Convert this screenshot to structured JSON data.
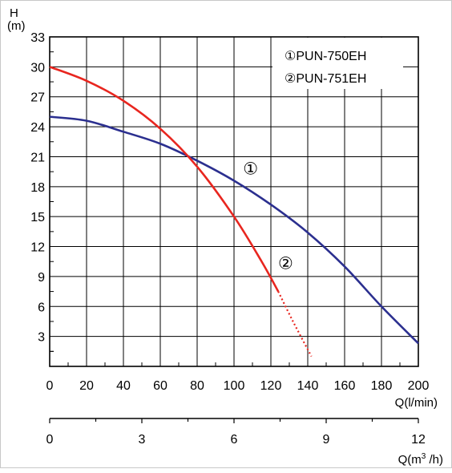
{
  "chart_data": {
    "type": "line",
    "y_axis": {
      "label_top": "H",
      "label_unit": "(m)",
      "ticks": [
        "3",
        "6",
        "9",
        "12",
        "15",
        "18",
        "21",
        "24",
        "27",
        "30",
        "33"
      ],
      "range": [
        0,
        33
      ]
    },
    "x_axis": {
      "label": "Q(l/min)",
      "ticks": [
        "0",
        "20",
        "40",
        "60",
        "80",
        "100",
        "120",
        "140",
        "160",
        "180",
        "200"
      ],
      "range": [
        0,
        200
      ]
    },
    "x2_axis": {
      "label_prefix": "Q(m",
      "label_sup": "3",
      "label_suffix": " /h)",
      "ticks": [
        "0",
        "3",
        "6",
        "9",
        "12"
      ],
      "range": [
        0,
        12
      ]
    },
    "legend": {
      "placement": "top-right",
      "items": [
        "①PUN-750EH",
        "②PUN-751EH"
      ]
    },
    "series": [
      {
        "name": "①",
        "color": "#2b2f8f",
        "x": [
          0,
          20,
          40,
          60,
          80,
          100,
          120,
          140,
          160,
          180,
          200
        ],
        "y": [
          25,
          24.6,
          23.5,
          22.3,
          20.6,
          18.6,
          16.2,
          13.4,
          10,
          6,
          2.3
        ]
      },
      {
        "name": "②",
        "color": "#e8261f",
        "x": [
          0,
          20,
          40,
          60,
          80,
          100,
          115,
          124
        ],
        "y": [
          30,
          28.6,
          26.6,
          23.8,
          20,
          15,
          10.5,
          7.5
        ],
        "dotted_extension": {
          "x": [
            124,
            132,
            142
          ],
          "y": [
            7.5,
            4.5,
            1
          ]
        }
      }
    ],
    "grid": true
  }
}
